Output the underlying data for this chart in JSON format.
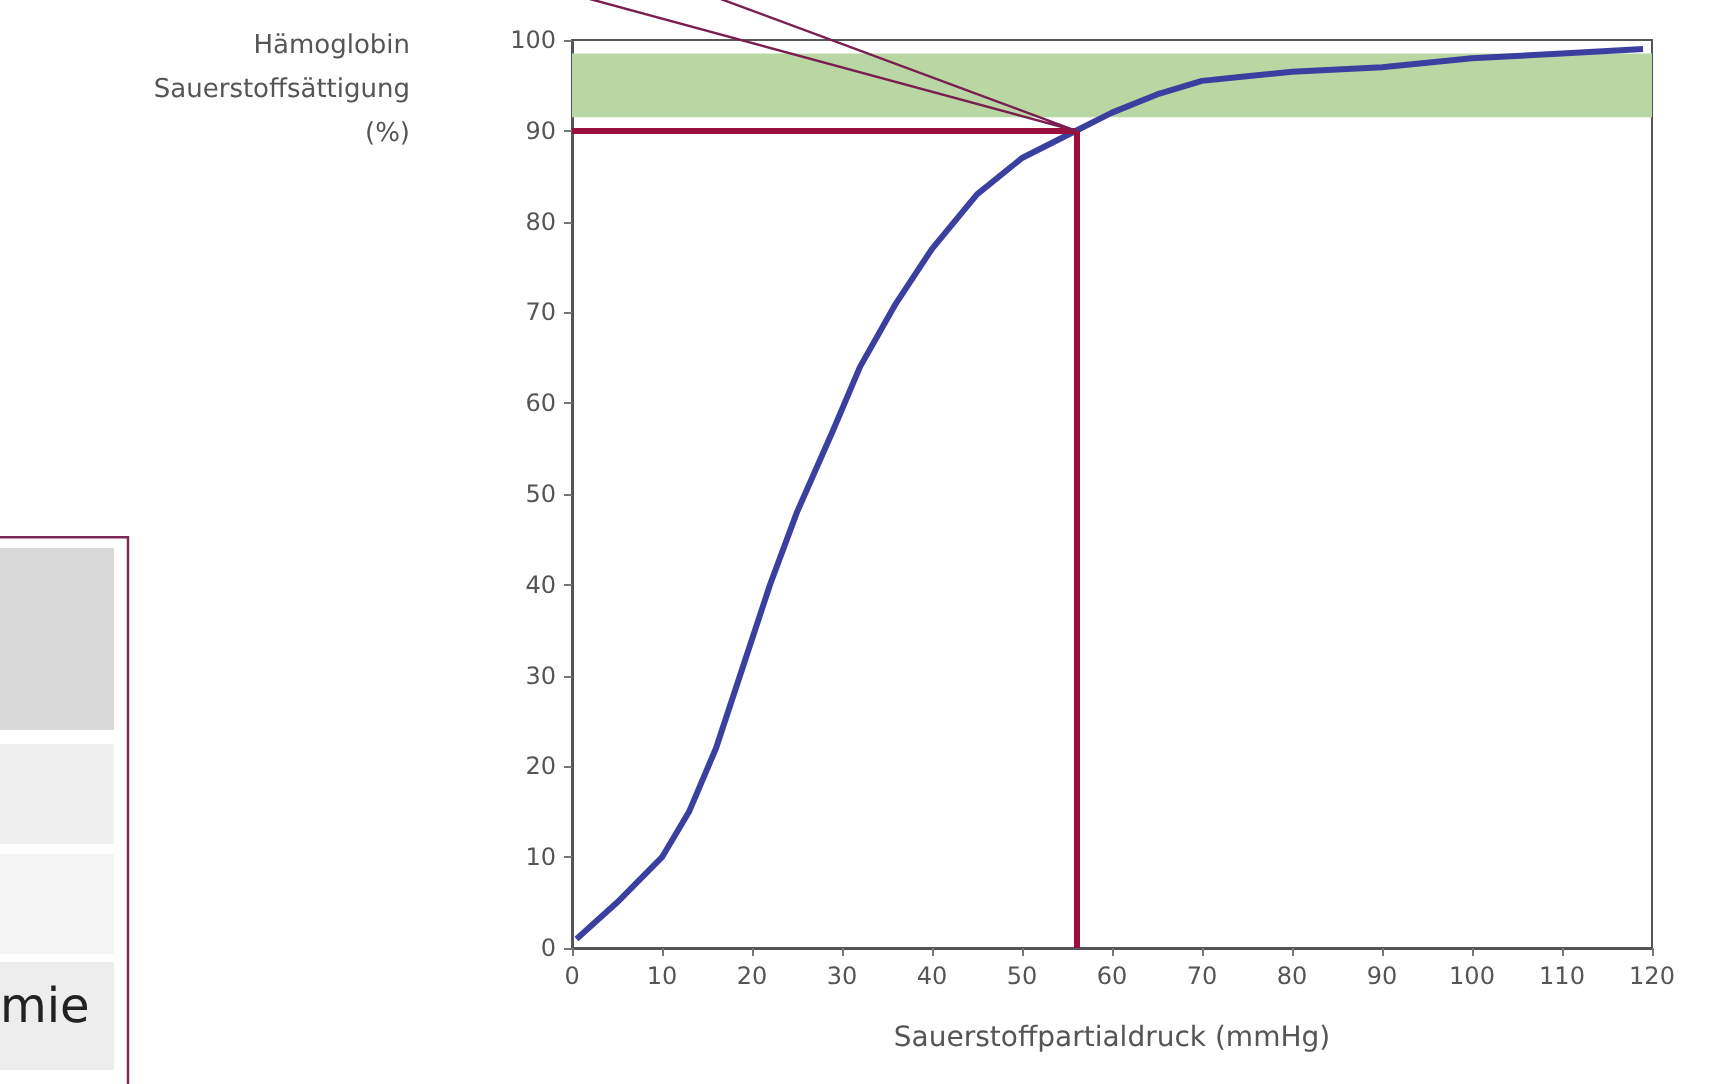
{
  "chart_data": {
    "type": "line",
    "ylabel": "Hämoglobin\nSauerstoffsättigung\n(%)",
    "xlabel": "Sauerstoffpartialdruck (mmHg)",
    "x": [
      0.5,
      5,
      10,
      13,
      16,
      19,
      22,
      25,
      29,
      32,
      36,
      40,
      45,
      50,
      56,
      60,
      65,
      70,
      75,
      80,
      90,
      100,
      110,
      119
    ],
    "series": [
      {
        "color": "#3b3fa0",
        "values": [
          1,
          5,
          10,
          15,
          22,
          31,
          40,
          48,
          57,
          64,
          71,
          77,
          83,
          87,
          90,
          92,
          94,
          95.5,
          96,
          96.5,
          97,
          98,
          98.5,
          99
        ]
      }
    ],
    "xlim": [
      0,
      120
    ],
    "xticks": [
      0,
      10,
      20,
      30,
      40,
      50,
      60,
      70,
      80,
      90,
      100,
      110,
      120
    ],
    "ylim": [
      0,
      100
    ],
    "yticks": [
      0,
      10,
      20,
      30,
      40,
      50,
      60,
      70,
      80,
      90,
      100
    ],
    "grid": false,
    "marker": "none",
    "line_style": "solid",
    "ref_lines": [
      {
        "axis": "y",
        "value": 90,
        "color": "#9b0f3a"
      },
      {
        "axis": "x",
        "value": 56,
        "color": "#9b0f3a"
      }
    ],
    "bands": [
      {
        "axis": "y",
        "from": 91.5,
        "to": 98.5,
        "color": "#b9d7a3"
      }
    ],
    "annotations": [
      "mie"
    ]
  }
}
